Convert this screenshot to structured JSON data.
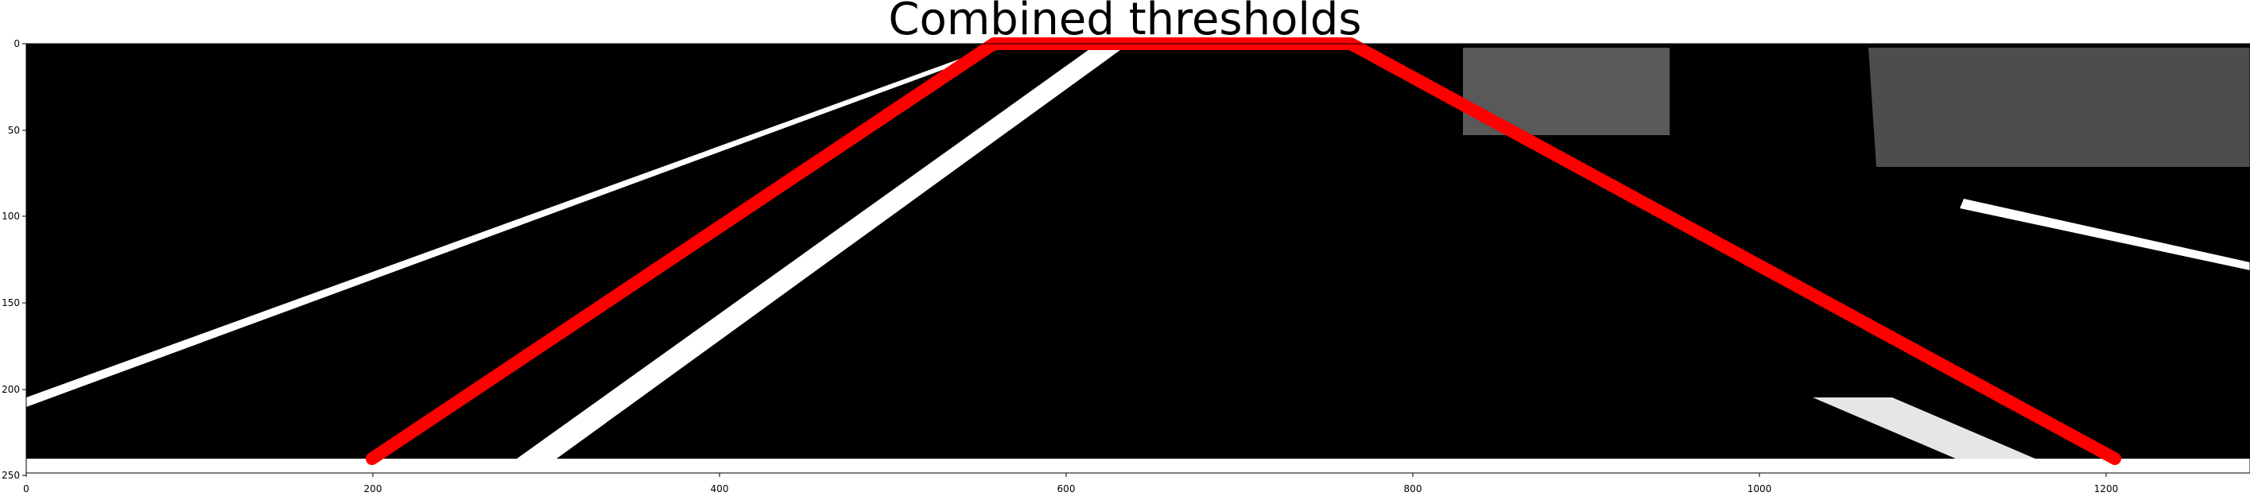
{
  "figure": {
    "title": "Combined thresholds"
  },
  "axes": {
    "x_ticks": [
      "0",
      "200",
      "400",
      "600",
      "800",
      "1000",
      "1200"
    ],
    "y_ticks": [
      "0",
      "50",
      "100",
      "150",
      "200",
      "250"
    ],
    "x_range": [
      0,
      1280
    ],
    "y_range": [
      0,
      250
    ]
  },
  "overlay": {
    "type": "polyline",
    "color": "#ff0000",
    "points": [
      [
        200,
        240
      ],
      [
        560,
        0
      ],
      [
        760,
        0
      ],
      [
        1200,
        240
      ]
    ]
  },
  "image": {
    "kind": "binary threshold map",
    "foreground": "#ffffff",
    "background": "#000000"
  }
}
